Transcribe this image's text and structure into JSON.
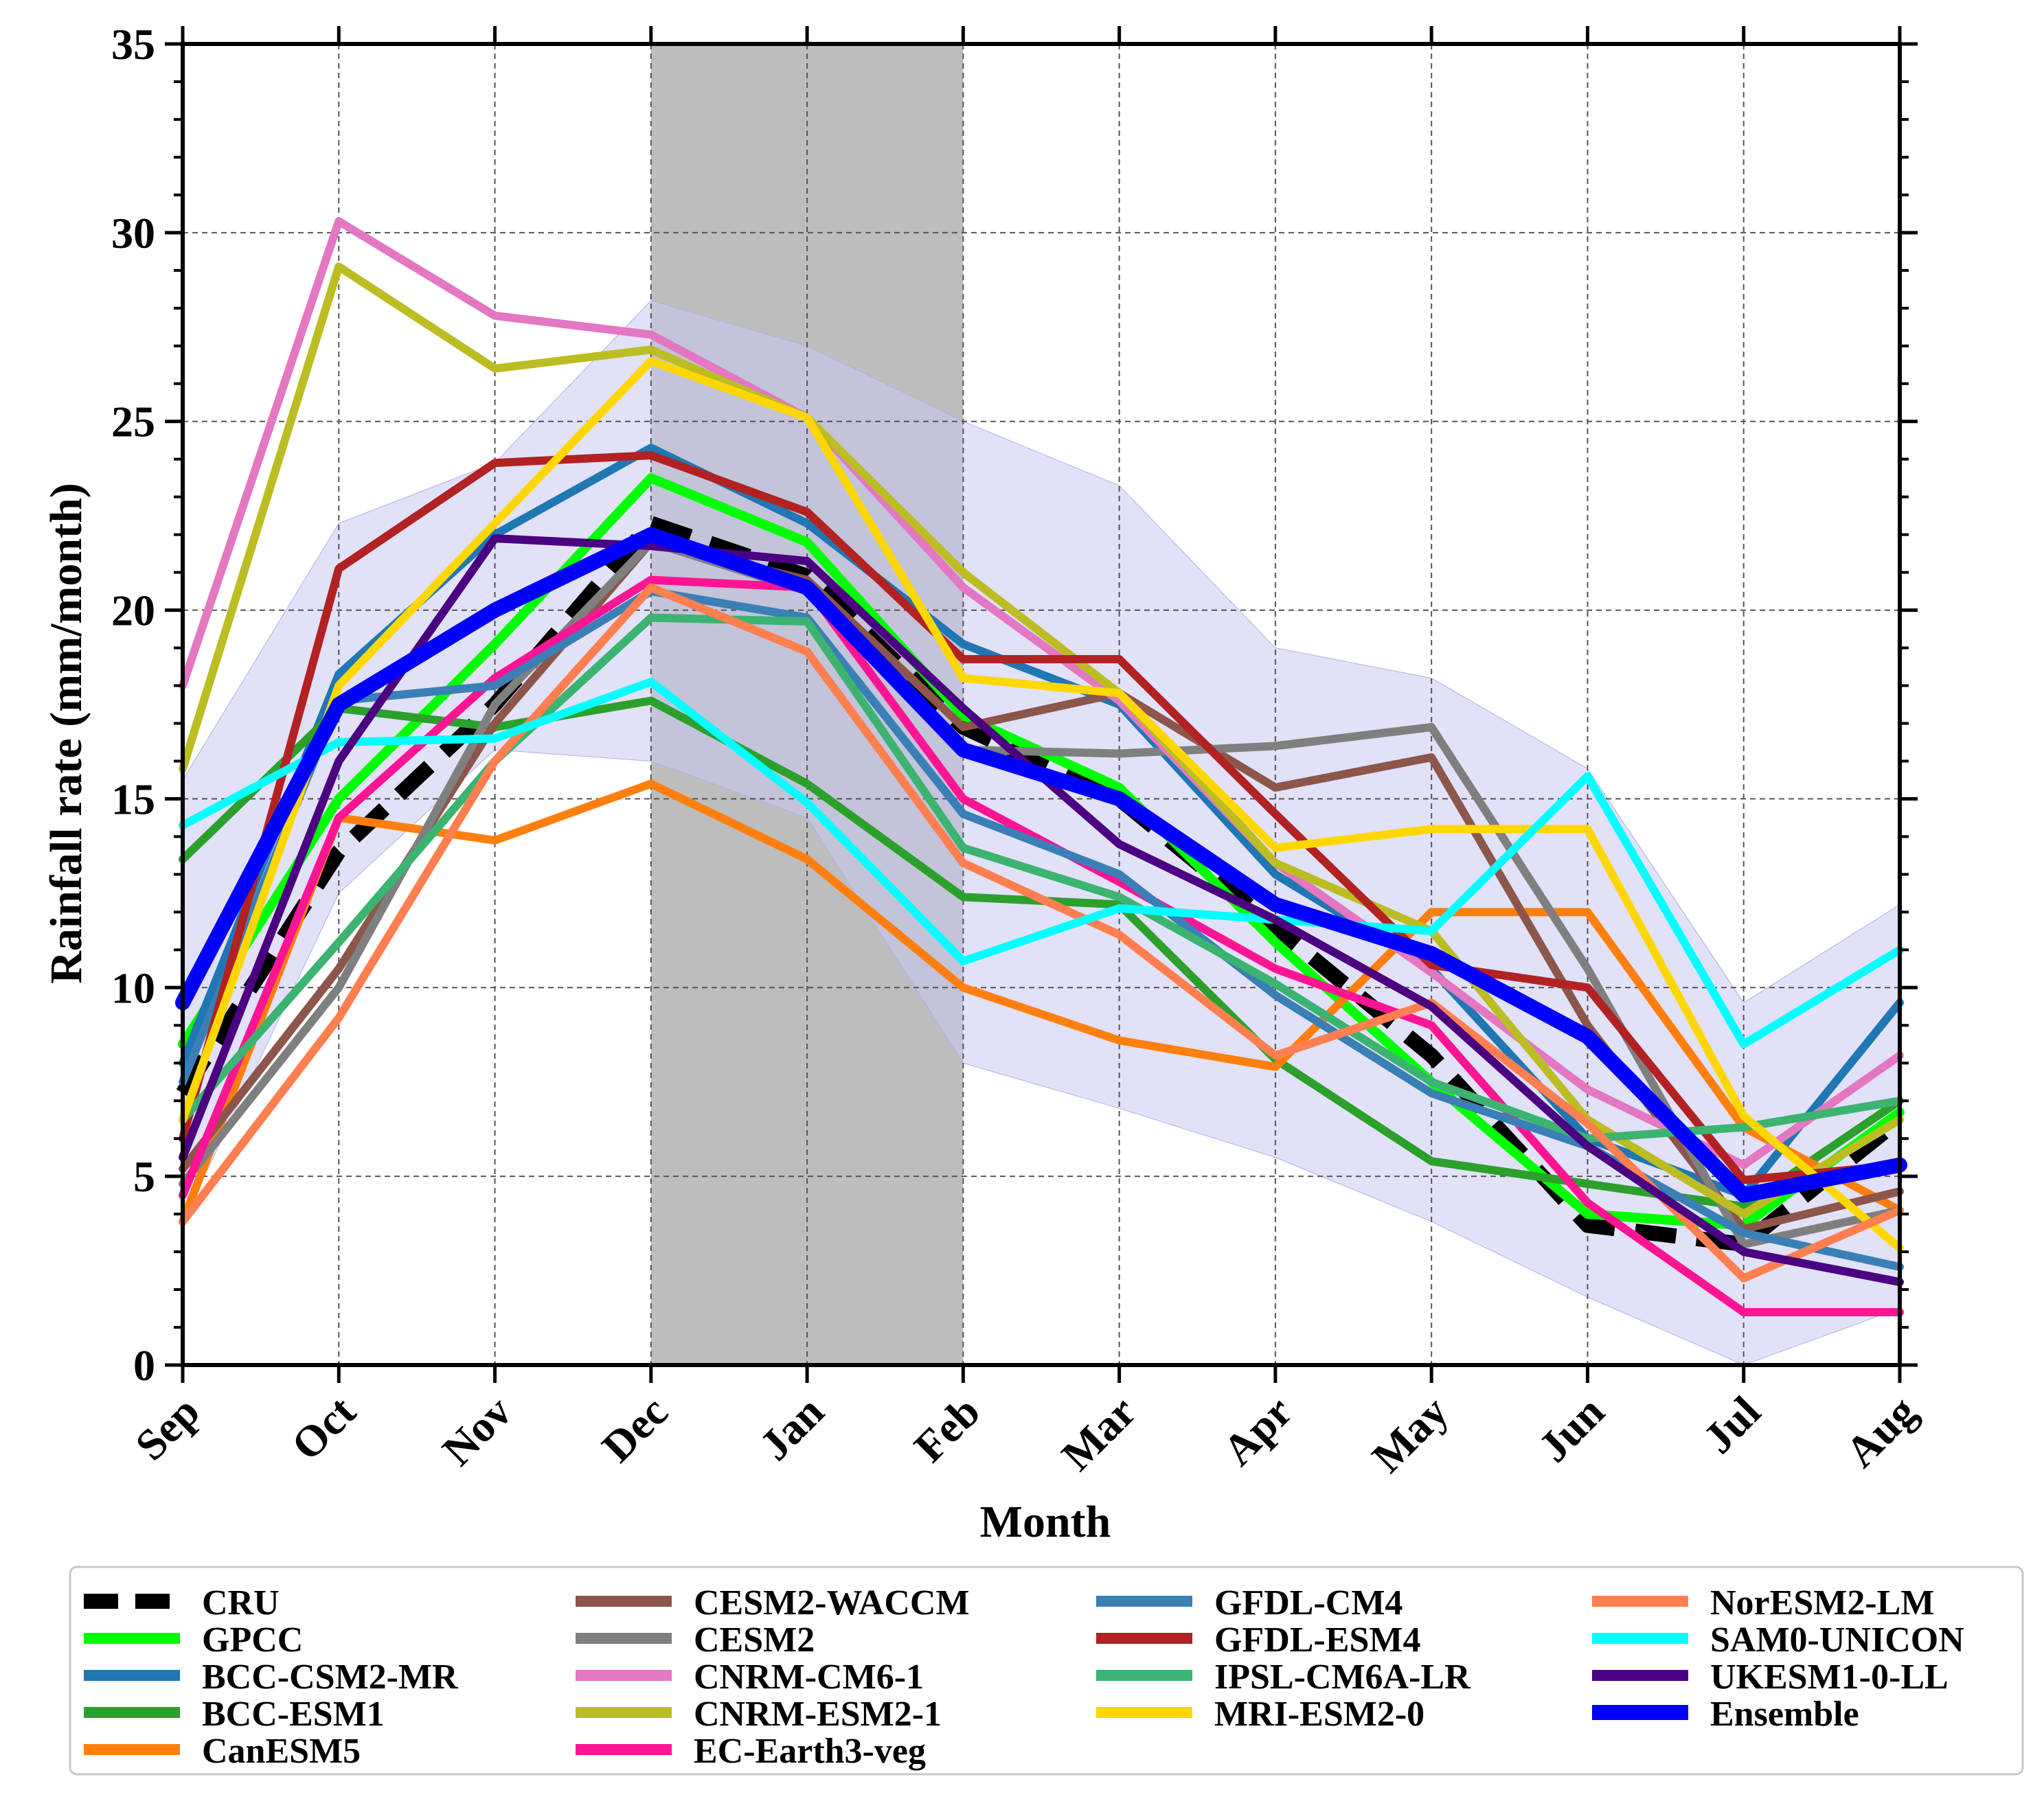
{
  "chart_data": {
    "type": "line",
    "title": "",
    "xlabel": "Month",
    "ylabel": "Rainfall rate (mm/month)",
    "categories": [
      "Sep",
      "Oct",
      "Nov",
      "Dec",
      "Jan",
      "Feb",
      "Mar",
      "Apr",
      "May",
      "Jun",
      "Jul",
      "Aug"
    ],
    "ylim": [
      0,
      35
    ],
    "yticks": [
      "0",
      "5",
      "10",
      "15",
      "20",
      "25",
      "30",
      "35"
    ],
    "grid": true,
    "shaded_period": {
      "from": "Dec",
      "to": "Feb",
      "color": "#bdbdbd"
    },
    "ensemble_spread": {
      "color": "#c8c8f2",
      "upper": [
        15.5,
        22.3,
        23.9,
        28.2,
        27.0,
        25.0,
        23.3,
        19.0,
        18.2,
        15.8,
        9.6,
        12.2
      ],
      "lower": [
        3.8,
        12.5,
        16.3,
        16.0,
        14.5,
        8.0,
        6.8,
        5.5,
        3.8,
        1.8,
        0.0,
        1.5
      ]
    },
    "legend_position": "bottom",
    "series": [
      {
        "name": "CRU",
        "color": "#000000",
        "dashed": true,
        "width": 22,
        "values": [
          7.2,
          13.6,
          17.5,
          22.3,
          20.9,
          16.9,
          15.0,
          11.6,
          8.2,
          3.7,
          3.2,
          6.5
        ]
      },
      {
        "name": "GPCC",
        "color": "#00ff00",
        "width": 14,
        "values": [
          8.5,
          15.0,
          19.1,
          23.5,
          21.8,
          17.2,
          15.3,
          11.2,
          7.5,
          4.0,
          3.7,
          6.7
        ]
      },
      {
        "name": "BCC-CSM2-MR",
        "color": "#1f77b4",
        "width": 12,
        "values": [
          8.0,
          18.3,
          22.0,
          24.3,
          22.3,
          19.1,
          17.5,
          13.0,
          10.5,
          6.0,
          4.5,
          9.6
        ]
      },
      {
        "name": "BCC-ESM1",
        "color": "#2ca02c",
        "width": 12,
        "values": [
          13.4,
          17.4,
          16.9,
          17.6,
          15.4,
          12.4,
          12.2,
          8.1,
          5.4,
          4.8,
          4.2,
          7.0
        ]
      },
      {
        "name": "CanESM5",
        "color": "#ff7f0e",
        "width": 12,
        "values": [
          3.8,
          14.5,
          13.9,
          15.4,
          13.4,
          10.0,
          8.6,
          7.9,
          12.0,
          12.0,
          6.3,
          4.1
        ]
      },
      {
        "name": "CESM2-WACCM",
        "color": "#8c564b",
        "width": 12,
        "values": [
          5.2,
          10.5,
          17.0,
          21.8,
          20.8,
          16.9,
          17.8,
          15.3,
          16.1,
          9.0,
          3.6,
          4.6
        ]
      },
      {
        "name": "CESM2",
        "color": "#7f7f7f",
        "width": 12,
        "values": [
          4.8,
          10.0,
          17.5,
          21.8,
          20.5,
          16.3,
          16.2,
          16.4,
          16.9,
          10.5,
          3.2,
          4.1
        ]
      },
      {
        "name": "CNRM-CM6-1",
        "color": "#e377c2",
        "width": 12,
        "values": [
          18.0,
          30.3,
          27.8,
          27.3,
          25.1,
          20.6,
          17.6,
          13.3,
          10.4,
          7.3,
          5.3,
          8.2
        ]
      },
      {
        "name": "CNRM-ESM2-1",
        "color": "#bcbd22",
        "width": 12,
        "values": [
          15.8,
          29.1,
          26.4,
          26.9,
          25.1,
          21.0,
          17.8,
          13.3,
          11.5,
          6.5,
          4.0,
          6.5
        ]
      },
      {
        "name": "EC-Earth3-veg",
        "color": "#ff1493",
        "width": 12,
        "values": [
          4.5,
          14.5,
          18.2,
          20.8,
          20.6,
          15.0,
          12.8,
          10.5,
          9.0,
          4.3,
          1.4,
          1.4
        ]
      },
      {
        "name": "GFDL-CM4",
        "color": "#3a7fb5",
        "width": 12,
        "values": [
          7.5,
          17.6,
          18.0,
          20.5,
          19.8,
          14.6,
          13.0,
          9.8,
          7.2,
          5.8,
          3.5,
          2.6
        ]
      },
      {
        "name": "GFDL-ESM4",
        "color": "#b22222",
        "width": 12,
        "values": [
          6.0,
          21.1,
          23.9,
          24.1,
          22.6,
          18.7,
          18.7,
          14.6,
          10.6,
          10.0,
          4.9,
          5.3
        ]
      },
      {
        "name": "IPSL-CM6A-LR",
        "color": "#3cb371",
        "width": 12,
        "values": [
          6.5,
          11.2,
          16.0,
          19.8,
          19.7,
          13.7,
          12.4,
          10.1,
          7.5,
          6.0,
          6.3,
          7.0
        ]
      },
      {
        "name": "MRI-ESM2-0",
        "color": "#ffd700",
        "width": 12,
        "values": [
          6.5,
          18.0,
          22.3,
          26.6,
          25.1,
          18.2,
          17.8,
          13.7,
          14.2,
          14.2,
          6.6,
          3.1
        ]
      },
      {
        "name": "NorESM2-LM",
        "color": "#ff7f50",
        "width": 12,
        "values": [
          3.8,
          9.2,
          16.0,
          20.6,
          18.9,
          13.3,
          11.4,
          8.2,
          9.6,
          6.4,
          2.3,
          4.1
        ]
      },
      {
        "name": "SAM0-UNICON",
        "color": "#00ffff",
        "width": 12,
        "values": [
          14.3,
          16.5,
          16.6,
          18.1,
          14.9,
          10.7,
          12.1,
          11.8,
          11.5,
          15.6,
          8.5,
          11.0
        ]
      },
      {
        "name": "UKESM1-0-LL",
        "color": "#4b0082",
        "width": 12,
        "values": [
          5.5,
          16.0,
          21.9,
          21.7,
          21.3,
          17.4,
          13.8,
          11.8,
          9.5,
          5.8,
          3.0,
          2.2
        ]
      },
      {
        "name": "Ensemble",
        "color": "#0000ff",
        "width": 22,
        "values": [
          9.6,
          17.5,
          20.0,
          22.0,
          20.6,
          16.3,
          15.0,
          12.2,
          10.9,
          8.7,
          4.5,
          5.3
        ]
      }
    ]
  }
}
